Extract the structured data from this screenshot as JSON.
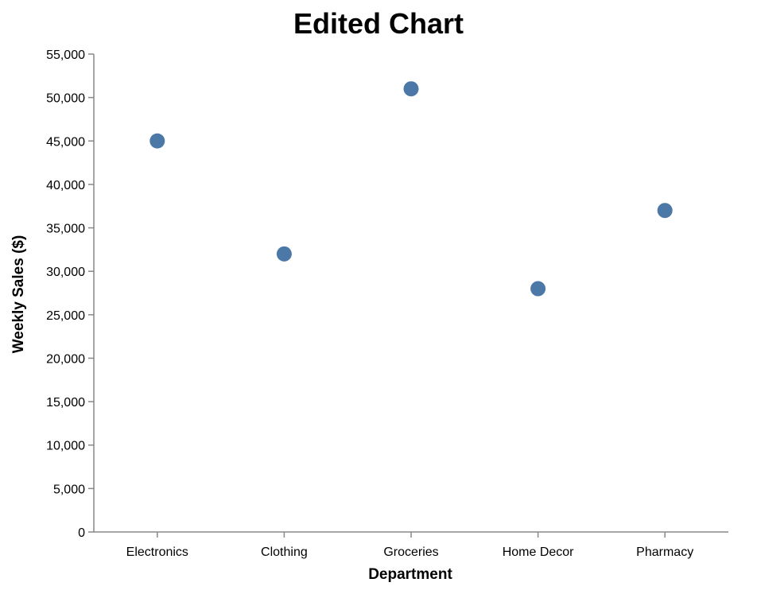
{
  "chart_data": {
    "type": "scatter",
    "title": "Edited Chart",
    "xlabel": "Department",
    "ylabel": "Weekly Sales ($)",
    "categories": [
      "Electronics",
      "Clothing",
      "Groceries",
      "Home Decor",
      "Pharmacy"
    ],
    "values": [
      45000,
      32000,
      51000,
      28000,
      37000
    ],
    "ylim": [
      0,
      55000
    ],
    "yticks": [
      "0",
      "5,000",
      "10,000",
      "15,000",
      "20,000",
      "25,000",
      "30,000",
      "35,000",
      "40,000",
      "45,000",
      "50,000",
      "55,000"
    ],
    "grid": false,
    "point_color": "#4c78a8"
  }
}
